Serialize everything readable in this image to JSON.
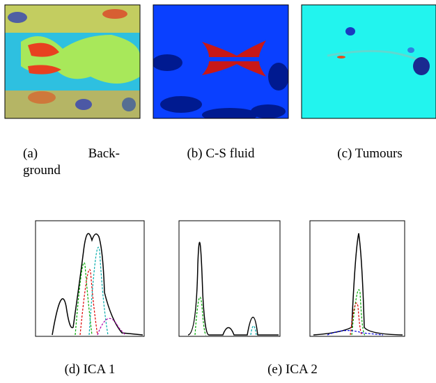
{
  "figure": {
    "captions": {
      "a": {
        "label": "(a)",
        "lines": [
          "Back-",
          "ground"
        ]
      },
      "b": "(b) C-S fluid",
      "c": "(c) Tumours",
      "d": "(d) ICA 1",
      "e": "(e) ICA 2"
    }
  }
}
